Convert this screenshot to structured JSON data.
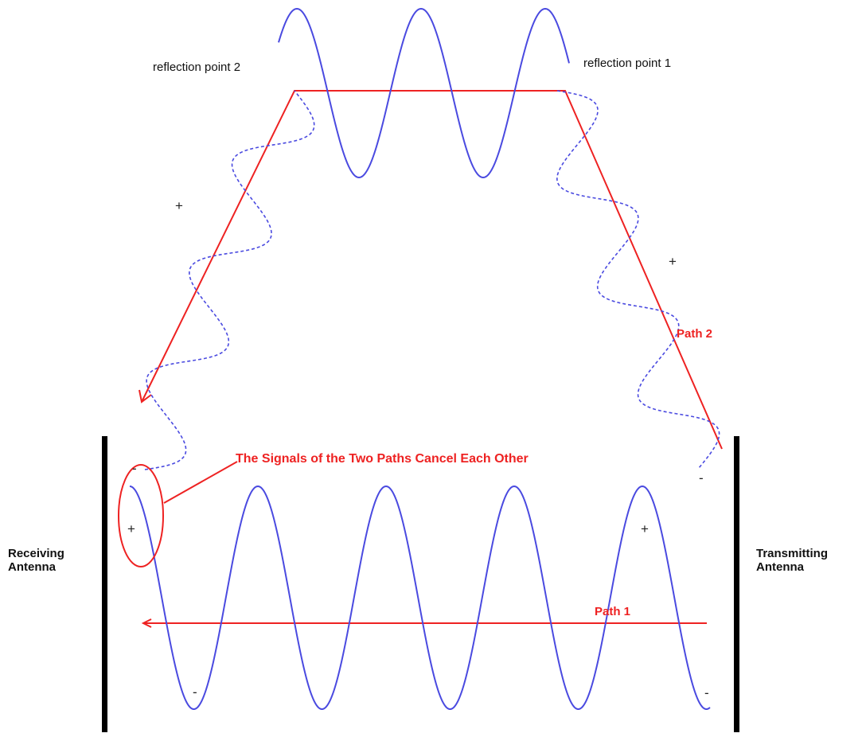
{
  "labels": {
    "receiving_antenna": "Receiving\nAntenna",
    "transmitting_antenna": "Transmitting\nAntenna",
    "reflection_point_2": "reflection point 2",
    "reflection_point_1": "reflection point 1",
    "path_2": "Path 2",
    "path_1": "Path 1",
    "cancel_note": "The Signals of the Two Paths Cancel Each Other"
  },
  "signs": {
    "plus": "+",
    "minus": "-"
  },
  "colors": {
    "wave": "#4a4ae0",
    "path": "#ee2222",
    "antenna": "#000000",
    "text": "#111111"
  }
}
